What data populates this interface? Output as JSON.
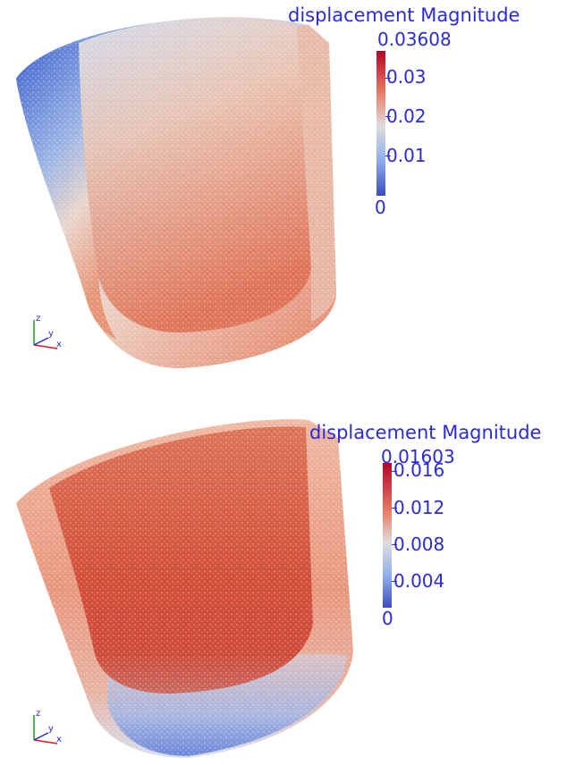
{
  "panels": [
    {
      "colorbar": {
        "title": "displacement Magnitude",
        "max_label": "0.03608",
        "range": [
          0,
          0.03608
        ],
        "ticks": [
          "0.03",
          "0.02",
          "0.01",
          "0"
        ]
      },
      "axes": {
        "z": "z",
        "y": "y",
        "x": "x"
      }
    },
    {
      "colorbar": {
        "title": "displacement Magnitude",
        "max_label": "0.01603",
        "range": [
          0,
          0.01603
        ],
        "ticks": [
          "0.016",
          "0.012",
          "0.008",
          "0.004",
          "0"
        ]
      },
      "axes": {
        "z": "z",
        "y": "y",
        "x": "x"
      }
    }
  ],
  "colormap": {
    "low": "#3b4cc0",
    "mid": "#dddddd",
    "high": "#b40426"
  }
}
